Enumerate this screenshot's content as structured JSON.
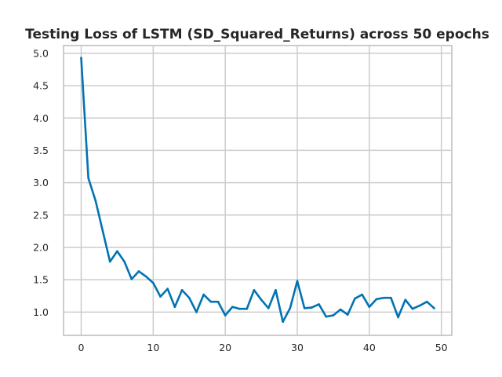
{
  "chart_data": {
    "type": "line",
    "title": "Testing Loss of LSTM (SD_Squared_Returns) across 50 epochs",
    "xlabel": "",
    "ylabel": "",
    "xlim": [
      -2.45,
      51.45
    ],
    "ylim": [
      0.64,
      5.12
    ],
    "x_ticks": [
      0,
      10,
      20,
      30,
      40,
      50
    ],
    "y_ticks": [
      1.0,
      1.5,
      2.0,
      2.5,
      3.0,
      3.5,
      4.0,
      4.5,
      5.0
    ],
    "grid": true,
    "legend": "none",
    "color": "#0173b2",
    "series": [
      {
        "x": [
          0,
          1,
          2,
          3,
          4,
          5,
          6,
          7,
          8,
          9,
          10,
          11,
          12,
          13,
          14,
          15,
          16,
          17,
          18,
          19,
          20,
          21,
          22,
          23,
          24,
          25,
          26,
          27,
          28,
          29,
          30,
          31,
          32,
          33,
          34,
          35,
          36,
          37,
          38,
          39,
          40,
          41,
          42,
          43,
          44,
          45,
          46,
          47,
          48,
          49
        ],
        "values": [
          4.93,
          3.07,
          2.72,
          2.25,
          1.78,
          1.94,
          1.78,
          1.51,
          1.63,
          1.55,
          1.45,
          1.24,
          1.36,
          1.08,
          1.34,
          1.22,
          1.0,
          1.27,
          1.16,
          1.16,
          0.95,
          1.08,
          1.05,
          1.05,
          1.34,
          1.19,
          1.06,
          1.34,
          0.85,
          1.06,
          1.48,
          1.06,
          1.07,
          1.12,
          0.93,
          0.95,
          1.04,
          0.96,
          1.21,
          1.27,
          1.08,
          1.2,
          1.22,
          1.22,
          0.92,
          1.19,
          1.05,
          1.1,
          1.16,
          1.06
        ]
      }
    ]
  }
}
